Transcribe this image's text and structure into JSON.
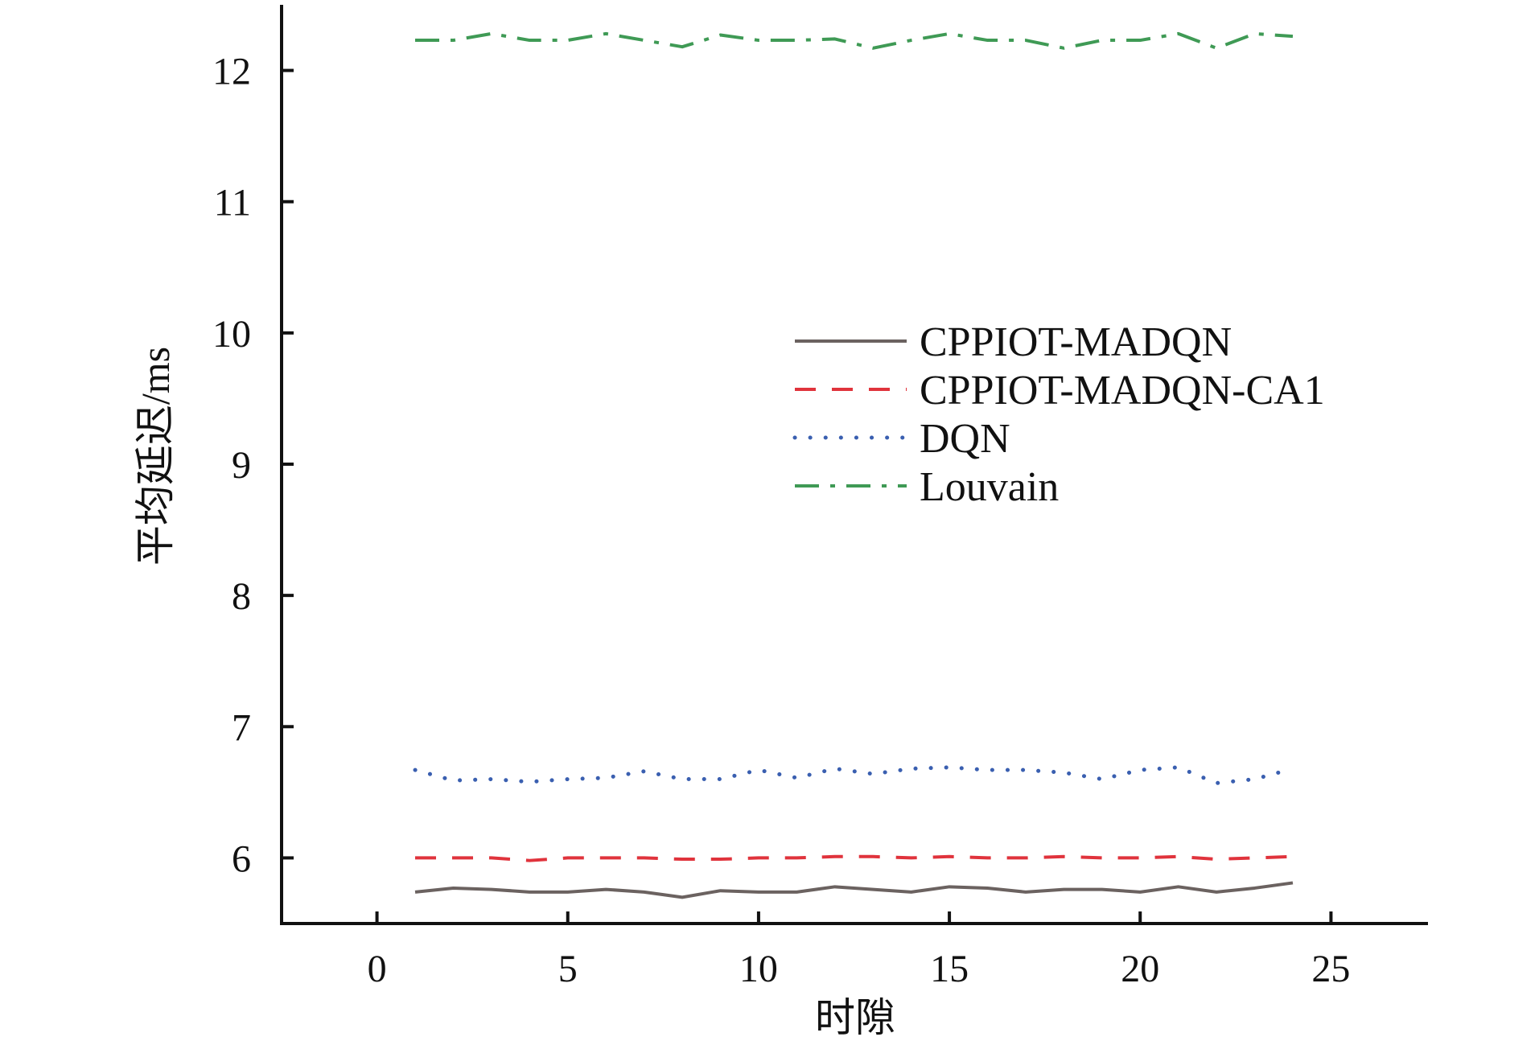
{
  "chart_data": {
    "type": "line",
    "title": "",
    "xlabel": "时隙",
    "ylabel": "平均延迟/ms",
    "xlim": [
      -2.5,
      27.5
    ],
    "ylim": [
      5.5,
      12.5
    ],
    "xticks": [
      0,
      5,
      10,
      15,
      20,
      25
    ],
    "yticks": [
      6,
      7,
      8,
      9,
      10,
      11,
      12
    ],
    "grid": false,
    "legend_position": "center-right",
    "x": [
      1,
      2,
      3,
      4,
      5,
      6,
      7,
      8,
      9,
      10,
      11,
      12,
      13,
      14,
      15,
      16,
      17,
      18,
      19,
      20,
      21,
      22,
      23,
      24
    ],
    "series": [
      {
        "name": "CPPIOT-MADQN",
        "color": "#6b6260",
        "dash": "solid",
        "values": [
          5.74,
          5.77,
          5.76,
          5.74,
          5.74,
          5.76,
          5.74,
          5.7,
          5.75,
          5.74,
          5.74,
          5.78,
          5.76,
          5.74,
          5.78,
          5.77,
          5.74,
          5.76,
          5.76,
          5.74,
          5.78,
          5.74,
          5.77,
          5.81
        ]
      },
      {
        "name": "CPPIOT-MADQN-CA1",
        "color": "#e0333c",
        "dash": "dashed",
        "values": [
          6.0,
          6.0,
          6.0,
          5.98,
          6.0,
          6.0,
          6.0,
          5.99,
          5.99,
          6.0,
          6.0,
          6.01,
          6.01,
          6.0,
          6.01,
          6.0,
          6.0,
          6.01,
          6.0,
          6.0,
          6.01,
          5.99,
          6.0,
          6.01
        ]
      },
      {
        "name": "DQN",
        "color": "#3a5fb0",
        "dash": "dotted",
        "values": [
          6.67,
          6.59,
          6.6,
          6.58,
          6.6,
          6.61,
          6.66,
          6.6,
          6.6,
          6.67,
          6.61,
          6.68,
          6.64,
          6.68,
          6.69,
          6.67,
          6.67,
          6.65,
          6.6,
          6.67,
          6.69,
          6.57,
          6.6,
          6.68
        ]
      },
      {
        "name": "Louvain",
        "color": "#3f9a55",
        "dash": "dashdot",
        "values": [
          12.23,
          12.23,
          12.28,
          12.23,
          12.23,
          12.28,
          12.23,
          12.18,
          12.27,
          12.23,
          12.23,
          12.24,
          12.17,
          12.23,
          12.28,
          12.23,
          12.23,
          12.17,
          12.23,
          12.23,
          12.28,
          12.17,
          12.28,
          12.26
        ]
      }
    ]
  }
}
